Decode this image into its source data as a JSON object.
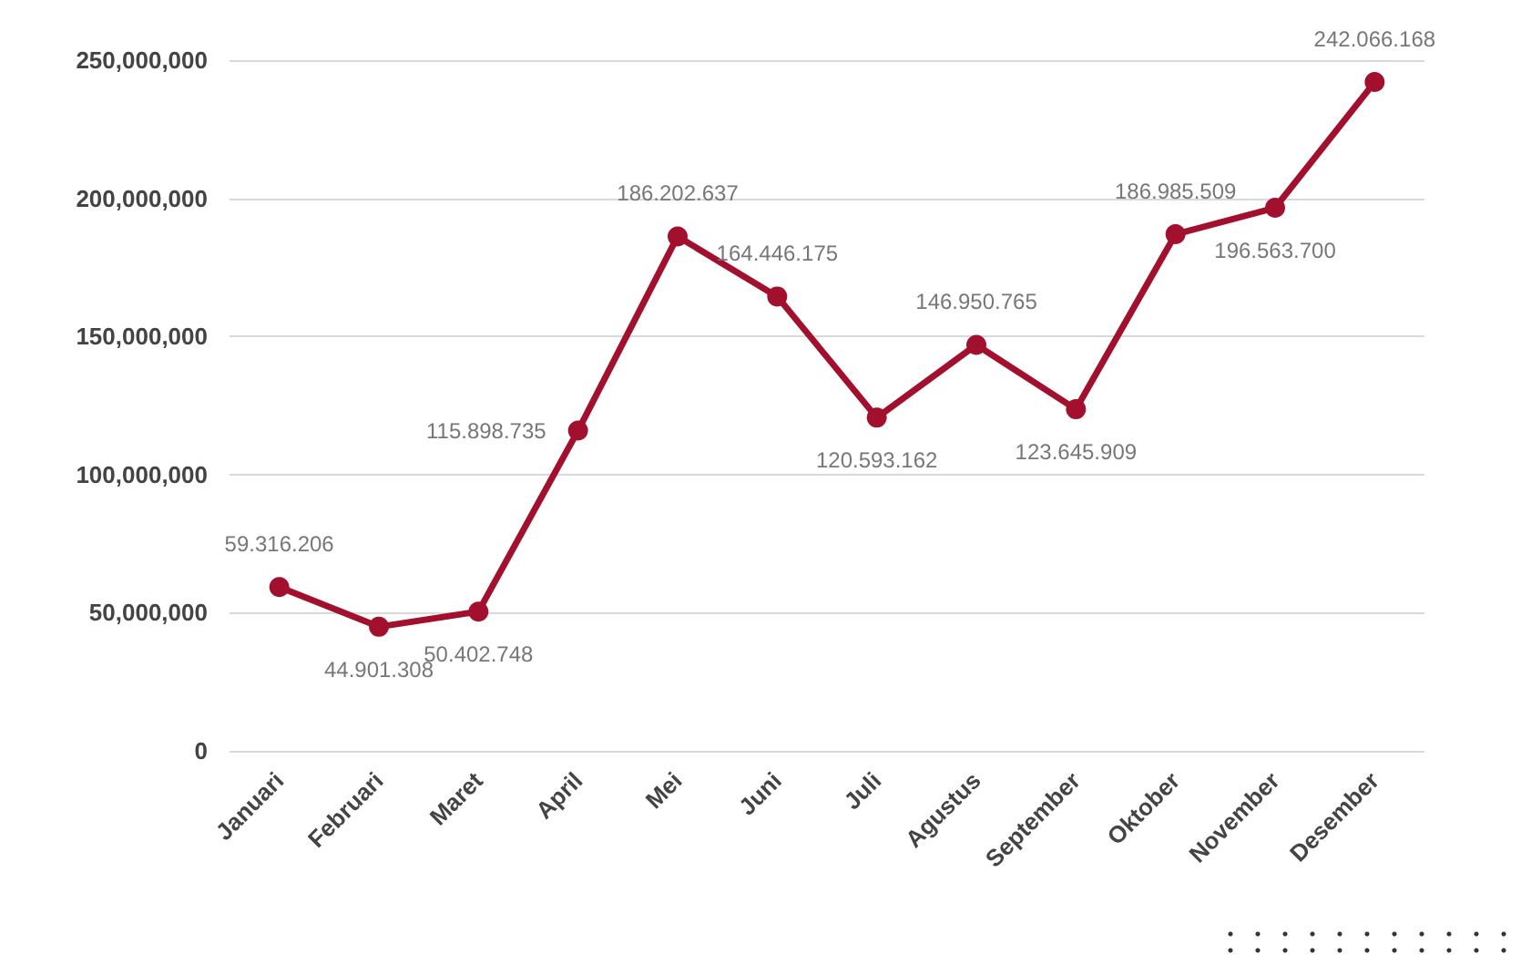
{
  "chart_data": {
    "type": "line",
    "categories": [
      "Januari",
      "Februari",
      "Maret",
      "April",
      "Mei",
      "Juni",
      "Juli",
      "Agustus",
      "September",
      "Oktober",
      "November",
      "Desember"
    ],
    "series": [
      {
        "color": "#a3102e",
        "values": [
          59316206,
          44901308,
          50402748,
          115898735,
          186202637,
          164446175,
          120593162,
          146950765,
          123645909,
          186985509,
          196563700,
          242066168
        ],
        "value_labels": [
          "59.316.206",
          "44.901.308",
          "50.402.748",
          "115.898.735",
          "186.202.637",
          "164.446.175",
          "120.593.162",
          "146.950.765",
          "123.645.909",
          "186.985.509",
          "196.563.700",
          "242.066.168"
        ]
      }
    ],
    "ylim": [
      0,
      250000000
    ],
    "yticks": [
      {
        "value": 0,
        "label": "0"
      },
      {
        "value": 50000000,
        "label": "50,000,000"
      },
      {
        "value": 100000000,
        "label": "100,000,000"
      },
      {
        "value": 150000000,
        "label": "150,000,000"
      },
      {
        "value": 200000000,
        "label": "200,000,000"
      },
      {
        "value": 250000000,
        "label": "250,000,000"
      }
    ],
    "grid": "y",
    "marker": "circle",
    "line_style": "solid"
  }
}
